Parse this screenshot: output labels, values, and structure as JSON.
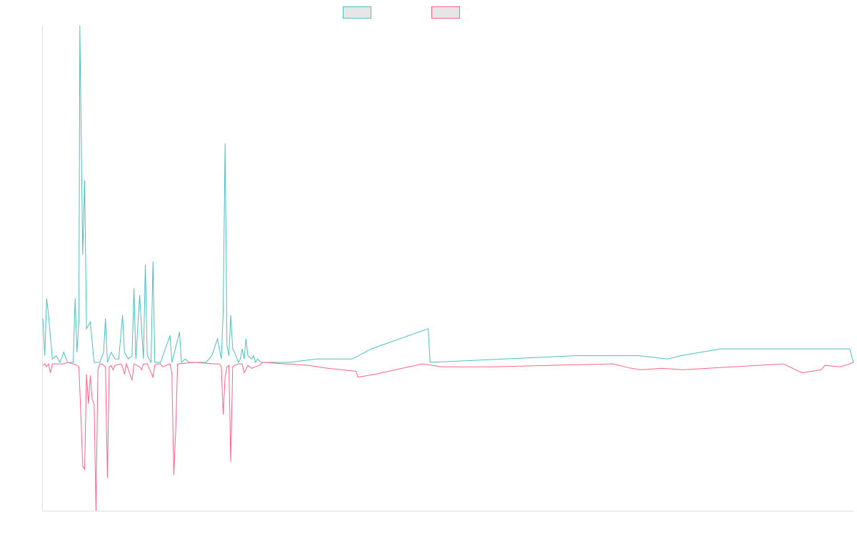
{
  "chart_data": {
    "type": "line",
    "title": "",
    "xlabel": "",
    "ylabel": "",
    "x_count": 427,
    "ylim": [
      -100,
      100
    ],
    "grid": false,
    "legend_position": "top-center",
    "series": [
      {
        "color": "#4bc0c0",
        "fill": "#e6e6e6",
        "points": [
          [
            0,
            13
          ],
          [
            1,
            2
          ],
          [
            2,
            19
          ],
          [
            3,
            14
          ],
          [
            5,
            1
          ],
          [
            7,
            2
          ],
          [
            9,
            0
          ],
          [
            11,
            3
          ],
          [
            13,
            0
          ],
          [
            16,
            0
          ],
          [
            17,
            19
          ],
          [
            18,
            3
          ],
          [
            19,
            12
          ],
          [
            19.5,
            100
          ],
          [
            21,
            32
          ],
          [
            22,
            54
          ],
          [
            23,
            10
          ],
          [
            25,
            12
          ],
          [
            26,
            6
          ],
          [
            27,
            0
          ],
          [
            28,
            0
          ],
          [
            30,
            0
          ],
          [
            32,
            3
          ],
          [
            33,
            13
          ],
          [
            34,
            0
          ],
          [
            36,
            3
          ],
          [
            38,
            1
          ],
          [
            40,
            1
          ],
          [
            42,
            14
          ],
          [
            43,
            3
          ],
          [
            45,
            1
          ],
          [
            47,
            2
          ],
          [
            48,
            22
          ],
          [
            49,
            1
          ],
          [
            51,
            20
          ],
          [
            52,
            10
          ],
          [
            53,
            1
          ],
          [
            54,
            29
          ],
          [
            55,
            2
          ],
          [
            57,
            0
          ],
          [
            58,
            30
          ],
          [
            59,
            0
          ],
          [
            62,
            0
          ],
          [
            67,
            8
          ],
          [
            68,
            0
          ],
          [
            72,
            9
          ],
          [
            73,
            0
          ],
          [
            75,
            1
          ],
          [
            77,
            0
          ],
          [
            80,
            0
          ],
          [
            83,
            0
          ],
          [
            86,
            0
          ],
          [
            89,
            2
          ],
          [
            92,
            7
          ],
          [
            94,
            1
          ],
          [
            95,
            15
          ],
          [
            96,
            65
          ],
          [
            97,
            5
          ],
          [
            98,
            2
          ],
          [
            99,
            14
          ],
          [
            100,
            4
          ],
          [
            101,
            3
          ],
          [
            103,
            0
          ],
          [
            104,
            1
          ],
          [
            105,
            4
          ],
          [
            106,
            1
          ],
          [
            107,
            7
          ],
          [
            108,
            2
          ],
          [
            110,
            1
          ],
          [
            111,
            2
          ],
          [
            112,
            0
          ],
          [
            113,
            1
          ],
          [
            115,
            0
          ],
          [
            117,
            0
          ],
          [
            120,
            0
          ],
          [
            130,
            0
          ],
          [
            144,
            1
          ],
          [
            146,
            1
          ],
          [
            163,
            1
          ],
          [
            173,
            4
          ],
          [
            203,
            10
          ],
          [
            204,
            0
          ],
          [
            243,
            1
          ],
          [
            280,
            2
          ],
          [
            290,
            2
          ],
          [
            314,
            2
          ],
          [
            329,
            1
          ],
          [
            336,
            2
          ],
          [
            357,
            4
          ],
          [
            402,
            4
          ],
          [
            410,
            4
          ],
          [
            415,
            4
          ],
          [
            425,
            4
          ],
          [
            427,
            0
          ]
        ]
      },
      {
        "color": "#ff6384",
        "fill": "#e6e6e6",
        "points": [
          [
            0,
            -2
          ],
          [
            1,
            -1
          ],
          [
            2,
            -3
          ],
          [
            3,
            -1
          ],
          [
            4,
            -7
          ],
          [
            5,
            -1
          ],
          [
            7,
            -1
          ],
          [
            9,
            -1
          ],
          [
            11,
            -1
          ],
          [
            13,
            0
          ],
          [
            16,
            -1
          ],
          [
            18,
            -2
          ],
          [
            19,
            -3
          ],
          [
            20,
            -35
          ],
          [
            21,
            -70
          ],
          [
            22,
            -72
          ],
          [
            23,
            -8
          ],
          [
            24,
            -28
          ],
          [
            25,
            -9
          ],
          [
            26,
            -25
          ],
          [
            27,
            -28
          ],
          [
            28,
            -100
          ],
          [
            29,
            -5
          ],
          [
            30,
            -1
          ],
          [
            31,
            -1
          ],
          [
            33,
            -3
          ],
          [
            34,
            -78
          ],
          [
            35,
            -3
          ],
          [
            36,
            -2
          ],
          [
            37,
            -5
          ],
          [
            38,
            -2
          ],
          [
            41,
            -1
          ],
          [
            42,
            -3
          ],
          [
            43,
            -8
          ],
          [
            44,
            -1
          ],
          [
            47,
            -12
          ],
          [
            48,
            -1
          ],
          [
            51,
            -3
          ],
          [
            52,
            -5
          ],
          [
            53,
            -1
          ],
          [
            55,
            -1
          ],
          [
            58,
            -10
          ],
          [
            59,
            -2
          ],
          [
            60,
            -1
          ],
          [
            62,
            -1
          ],
          [
            63,
            -3
          ],
          [
            67,
            -1
          ],
          [
            68,
            -8
          ],
          [
            69,
            -76
          ],
          [
            70,
            -45
          ],
          [
            71,
            -1
          ],
          [
            80,
            0
          ],
          [
            90,
            -1
          ],
          [
            93,
            -1
          ],
          [
            94,
            -3
          ],
          [
            95,
            -35
          ],
          [
            96,
            -10
          ],
          [
            97,
            -3
          ],
          [
            98,
            -2
          ],
          [
            99,
            -67
          ],
          [
            100,
            -3
          ],
          [
            101,
            -2
          ],
          [
            103,
            -1
          ],
          [
            104,
            -1
          ],
          [
            105,
            -1
          ],
          [
            106,
            -7
          ],
          [
            108,
            -2
          ],
          [
            110,
            -4
          ],
          [
            112,
            -3
          ],
          [
            114,
            -2
          ],
          [
            116,
            0
          ],
          [
            140,
            -2
          ],
          [
            150,
            -4
          ],
          [
            165,
            -6
          ],
          [
            166,
            -10
          ],
          [
            175,
            -8
          ],
          [
            200,
            -1
          ],
          [
            210,
            -3
          ],
          [
            237,
            -3
          ],
          [
            300,
            -1
          ],
          [
            310,
            -4
          ],
          [
            315,
            -5
          ],
          [
            326,
            -4
          ],
          [
            337,
            -5
          ],
          [
            390,
            -1
          ],
          [
            400,
            -7
          ],
          [
            410,
            -5
          ],
          [
            412,
            -2
          ],
          [
            420,
            -3
          ],
          [
            425,
            -1
          ],
          [
            427,
            0
          ]
        ]
      }
    ]
  }
}
